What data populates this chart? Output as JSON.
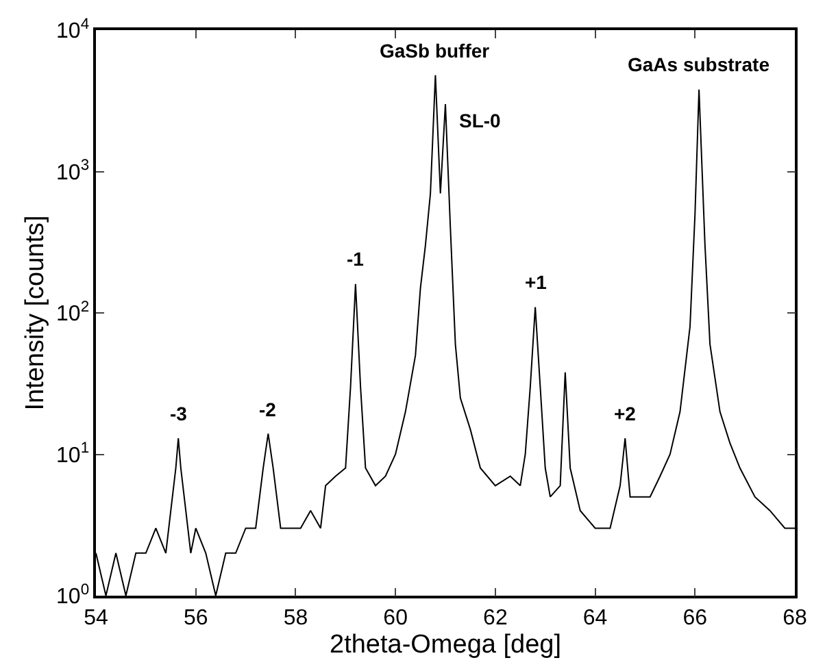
{
  "chart_data": {
    "type": "line",
    "xlabel": "2theta-Omega [deg]",
    "ylabel": "Intensity [counts]",
    "log": "y",
    "legend": false,
    "marker": "none",
    "line_style": "solid",
    "xlim": [
      54,
      68
    ],
    "xticks": [
      54,
      56,
      58,
      60,
      62,
      64,
      66,
      68
    ],
    "ylim": [
      1,
      10000
    ],
    "yticks": [
      {
        "value": 1,
        "label": "10$^{0}$"
      },
      {
        "value": 10,
        "label": "10$^{1}$"
      },
      {
        "value": 100,
        "label": "10$^{2}$"
      },
      {
        "value": 1000,
        "label": "10$^{3}$"
      },
      {
        "value": 10000,
        "label": "10$^{4}$"
      }
    ],
    "series": [
      {
        "color": "#000000",
        "x": [
          54.0,
          54.2,
          54.4,
          54.6,
          54.8,
          55.0,
          55.2,
          55.4,
          55.5,
          55.6,
          55.65,
          55.7,
          55.8,
          55.9,
          56.0,
          56.2,
          56.4,
          56.6,
          56.8,
          57.0,
          57.2,
          57.35,
          57.45,
          57.55,
          57.7,
          57.9,
          58.1,
          58.3,
          58.5,
          58.6,
          58.8,
          59.0,
          59.1,
          59.2,
          59.3,
          59.4,
          59.6,
          59.8,
          60.0,
          60.2,
          60.4,
          60.5,
          60.6,
          60.7,
          60.8,
          60.9,
          61.0,
          61.1,
          61.2,
          61.3,
          61.5,
          61.7,
          62.0,
          62.3,
          62.5,
          62.6,
          62.7,
          62.8,
          62.9,
          63.0,
          63.1,
          63.3,
          63.4,
          63.5,
          63.7,
          64.0,
          64.3,
          64.5,
          64.6,
          64.7,
          64.9,
          65.1,
          65.3,
          65.5,
          65.7,
          65.9,
          66.0,
          66.08,
          66.2,
          66.3,
          66.5,
          66.7,
          66.9,
          67.2,
          67.5,
          67.8,
          68.0
        ],
        "values": [
          2,
          1,
          2,
          1,
          2,
          2,
          3,
          2,
          4,
          8,
          13,
          8,
          4,
          2,
          3,
          2,
          1,
          2,
          2,
          3,
          3,
          8,
          14,
          8,
          3,
          3,
          3,
          4,
          3,
          6,
          7,
          8,
          30,
          160,
          30,
          8,
          6,
          7,
          10,
          20,
          50,
          150,
          300,
          700,
          4800,
          700,
          3000,
          400,
          60,
          25,
          15,
          8,
          6,
          7,
          6,
          10,
          30,
          110,
          30,
          8,
          5,
          6,
          38,
          8,
          4,
          3,
          3,
          6,
          13,
          5,
          5,
          5,
          7,
          10,
          20,
          80,
          500,
          3800,
          300,
          60,
          20,
          12,
          8,
          5,
          4,
          3,
          3
        ]
      }
    ],
    "annotations": [
      {
        "text": "-3",
        "x": 55.65,
        "y": 13
      },
      {
        "text": "-2",
        "x": 57.45,
        "y": 14
      },
      {
        "text": "-1",
        "x": 59.2,
        "y": 160
      },
      {
        "text": "GaSb buffer",
        "x": 60.8,
        "y": 4800
      },
      {
        "text": "SL-0",
        "x": 61.0,
        "y": 3000
      },
      {
        "text": "+1",
        "x": 62.8,
        "y": 110
      },
      {
        "text": "+2",
        "x": 64.6,
        "y": 13
      },
      {
        "text": "GaAs substrate",
        "x": 66.08,
        "y": 3800
      }
    ]
  }
}
